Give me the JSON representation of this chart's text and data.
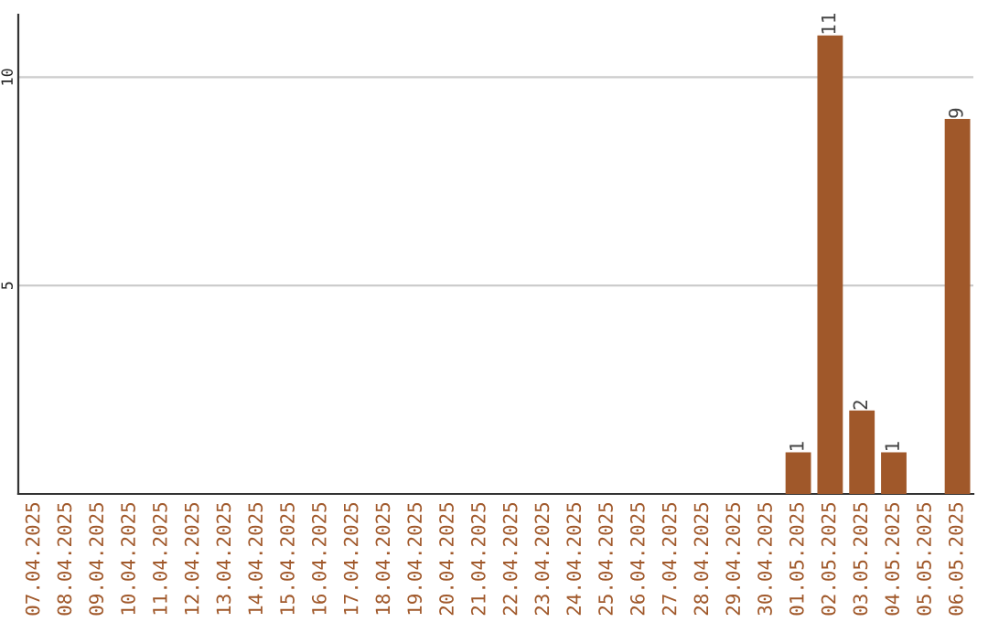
{
  "chart_data": {
    "type": "bar",
    "categories": [
      "07.04.2025",
      "08.04.2025",
      "09.04.2025",
      "10.04.2025",
      "11.04.2025",
      "12.04.2025",
      "13.04.2025",
      "14.04.2025",
      "15.04.2025",
      "16.04.2025",
      "17.04.2025",
      "18.04.2025",
      "19.04.2025",
      "20.04.2025",
      "21.04.2025",
      "22.04.2025",
      "23.04.2025",
      "24.04.2025",
      "25.04.2025",
      "26.04.2025",
      "27.04.2025",
      "28.04.2025",
      "29.04.2025",
      "30.04.2025",
      "01.05.2025",
      "02.05.2025",
      "03.05.2025",
      "04.05.2025",
      "05.05.2025",
      "06.05.2025"
    ],
    "values": [
      0,
      0,
      0,
      0,
      0,
      0,
      0,
      0,
      0,
      0,
      0,
      0,
      0,
      0,
      0,
      0,
      0,
      0,
      0,
      0,
      0,
      0,
      0,
      0,
      1,
      11,
      2,
      1,
      0,
      9
    ],
    "value_labels": [
      null,
      null,
      null,
      null,
      null,
      null,
      null,
      null,
      null,
      null,
      null,
      null,
      null,
      null,
      null,
      null,
      null,
      null,
      null,
      null,
      null,
      null,
      null,
      null,
      "1",
      "11",
      "2",
      "1",
      null,
      "9"
    ],
    "color": "#a0582a",
    "ylim": [
      0,
      11.5
    ],
    "yticks": [
      5,
      10
    ],
    "grid": "y"
  }
}
